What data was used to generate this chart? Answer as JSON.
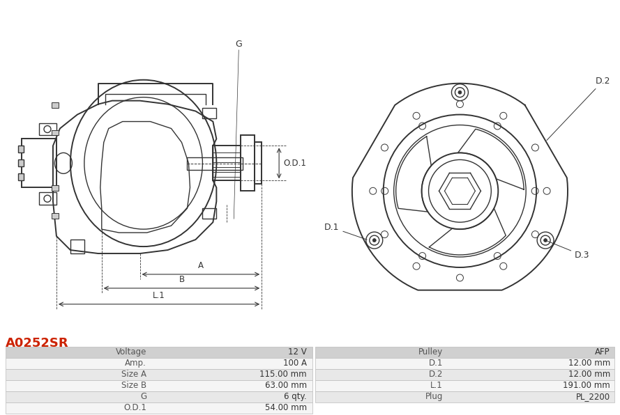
{
  "title": "A0252SR",
  "title_color": "#cc2200",
  "bg_color": "#ffffff",
  "line_color": "#333333",
  "table_header_bg": "#d0d0d0",
  "table_row_bg1": "#e8e8e8",
  "table_row_bg2": "#f5f5f5",
  "table_data": [
    [
      "Voltage",
      "12 V",
      "Pulley",
      "AFP"
    ],
    [
      "Amp.",
      "100 A",
      "D.1",
      "12.00 mm"
    ],
    [
      "Size A",
      "115.00 mm",
      "D.2",
      "12.00 mm"
    ],
    [
      "Size B",
      "63.00 mm",
      "L.1",
      "191.00 mm"
    ],
    [
      "G",
      "6 qty.",
      "Plug",
      "PL_2200"
    ],
    [
      "O.D.1",
      "54.00 mm",
      "",
      ""
    ]
  ]
}
